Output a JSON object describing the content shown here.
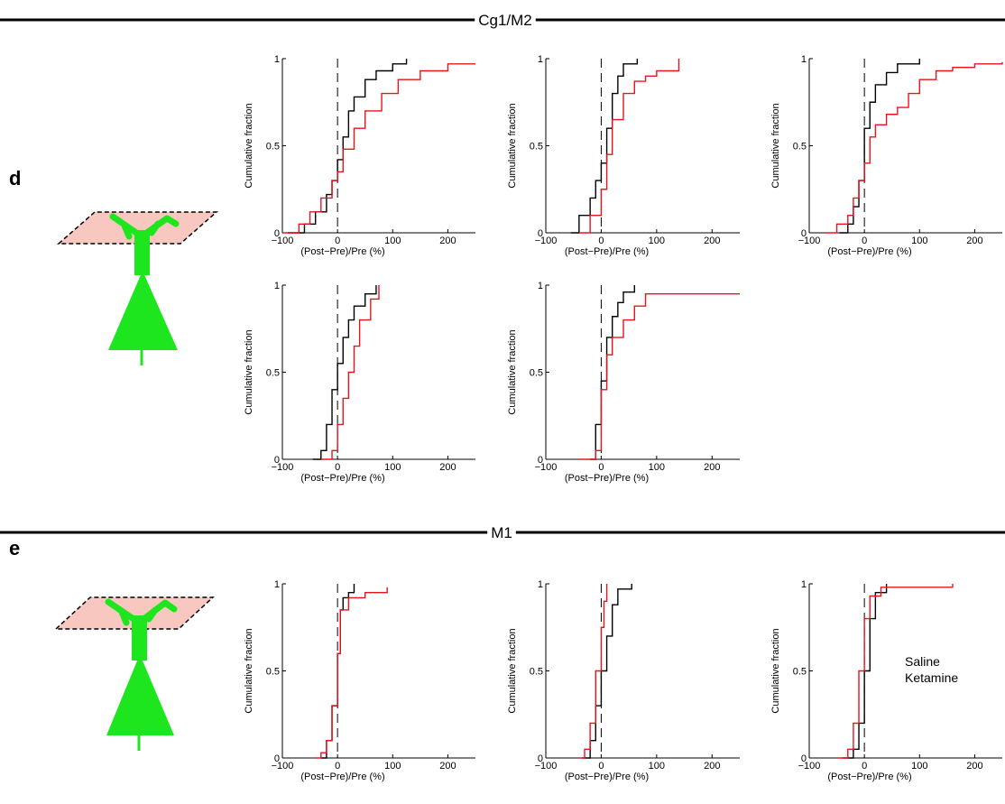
{
  "sections": [
    {
      "title": "Cg1/M2",
      "letter": "d"
    },
    {
      "title": "M1",
      "letter": "e"
    }
  ],
  "legend": [
    {
      "name": "Saline",
      "color": "#000000"
    },
    {
      "name": "Ketamine",
      "color": "#e8141b"
    }
  ],
  "chart_data": [
    {
      "type": "line",
      "step": true,
      "xlabel": "(Post−Pre)/Pre (%)",
      "ylabel": "Cumulative fraction",
      "xlim": [
        -100,
        250
      ],
      "ylim": [
        0,
        1
      ],
      "xticks": [
        {
          "value": -100,
          "label": "−100"
        },
        0,
        100,
        200
      ],
      "yticks": [
        0,
        0.5,
        1
      ],
      "vline": 0,
      "series": [
        {
          "color": "#000000",
          "x": [
            -90,
            -60,
            -40,
            -20,
            -10,
            0,
            10,
            20,
            30,
            50,
            70,
            100,
            125
          ],
          "values": [
            0,
            0.05,
            0.12,
            0.22,
            0.3,
            0.42,
            0.55,
            0.7,
            0.78,
            0.88,
            0.93,
            0.97,
            1
          ]
        },
        {
          "color": "#e8141b",
          "x": [
            -100,
            -70,
            -50,
            -30,
            -10,
            0,
            10,
            30,
            50,
            80,
            110,
            150,
            200,
            250
          ],
          "values": [
            0,
            0.05,
            0.12,
            0.2,
            0.3,
            0.35,
            0.48,
            0.6,
            0.7,
            0.8,
            0.88,
            0.93,
            0.97,
            0.97
          ]
        }
      ]
    },
    {
      "type": "line",
      "step": true,
      "xlabel": "(Post−Pre)/Pre (%)",
      "ylabel": "Cumulative fraction",
      "xlim": [
        -100,
        250
      ],
      "ylim": [
        0,
        1
      ],
      "xticks": [
        {
          "value": -100,
          "label": "−100"
        },
        0,
        100,
        200
      ],
      "yticks": [
        0,
        0.5,
        1
      ],
      "vline": 0,
      "series": [
        {
          "color": "#000000",
          "x": [
            -55,
            -40,
            -20,
            -10,
            0,
            10,
            20,
            30,
            40,
            65
          ],
          "values": [
            0,
            0.1,
            0.2,
            0.3,
            0.4,
            0.6,
            0.8,
            0.9,
            0.97,
            1
          ]
        },
        {
          "color": "#e8141b",
          "x": [
            -40,
            -20,
            0,
            10,
            20,
            40,
            60,
            80,
            100,
            140
          ],
          "values": [
            0,
            0.1,
            0.25,
            0.45,
            0.65,
            0.8,
            0.87,
            0.9,
            0.93,
            1
          ]
        }
      ]
    },
    {
      "type": "line",
      "step": true,
      "xlabel": "(Post−Pre)/Pre (%)",
      "ylabel": "Cumulative fraction",
      "xlim": [
        -100,
        250
      ],
      "ylim": [
        0,
        1
      ],
      "xticks": [
        {
          "value": -100,
          "label": "−100"
        },
        0,
        100,
        200
      ],
      "yticks": [
        0,
        0.5,
        1
      ],
      "vline": 0,
      "series": [
        {
          "color": "#000000",
          "x": [
            -45,
            -30,
            -20,
            -10,
            0,
            10,
            20,
            40,
            60,
            100
          ],
          "values": [
            0,
            0.05,
            0.15,
            0.3,
            0.6,
            0.75,
            0.85,
            0.92,
            0.97,
            1
          ]
        },
        {
          "color": "#e8141b",
          "x": [
            -70,
            -50,
            -30,
            -20,
            -10,
            0,
            10,
            20,
            40,
            60,
            80,
            100,
            130,
            160,
            200,
            250
          ],
          "values": [
            0,
            0.05,
            0.1,
            0.2,
            0.3,
            0.4,
            0.55,
            0.62,
            0.68,
            0.72,
            0.8,
            0.88,
            0.93,
            0.95,
            0.97,
            0.98
          ]
        }
      ]
    },
    {
      "type": "line",
      "step": true,
      "xlabel": "(Post−Pre)/Pre (%)",
      "ylabel": "Cumulative fraction",
      "xlim": [
        -100,
        250
      ],
      "ylim": [
        0,
        1
      ],
      "xticks": [
        {
          "value": -100,
          "label": "−100"
        },
        0,
        100,
        200
      ],
      "yticks": [
        0,
        0.5,
        1
      ],
      "vline": 0,
      "series": [
        {
          "color": "#000000",
          "x": [
            -45,
            -30,
            -20,
            -10,
            0,
            10,
            20,
            30,
            50,
            70
          ],
          "values": [
            0,
            0.05,
            0.2,
            0.4,
            0.55,
            0.7,
            0.8,
            0.88,
            0.95,
            1
          ]
        },
        {
          "color": "#e8141b",
          "x": [
            -30,
            -10,
            0,
            10,
            20,
            30,
            40,
            60,
            75
          ],
          "values": [
            0,
            0.05,
            0.2,
            0.35,
            0.5,
            0.65,
            0.8,
            0.92,
            1
          ]
        }
      ]
    },
    {
      "type": "line",
      "step": true,
      "xlabel": "(Post−Pre)/Pre (%)",
      "ylabel": "Cumulative fraction",
      "xlim": [
        -100,
        250
      ],
      "ylim": [
        0,
        1
      ],
      "xticks": [
        {
          "value": -100,
          "label": "−100"
        },
        0,
        100,
        200
      ],
      "yticks": [
        0,
        0.5,
        1
      ],
      "vline": 0,
      "series": [
        {
          "color": "#000000",
          "x": [
            -20,
            -10,
            0,
            10,
            20,
            30,
            40,
            60
          ],
          "values": [
            0,
            0.2,
            0.45,
            0.7,
            0.82,
            0.9,
            0.96,
            1
          ]
        },
        {
          "color": "#e8141b",
          "x": [
            -40,
            -10,
            0,
            10,
            20,
            40,
            60,
            80,
            250
          ],
          "values": [
            0,
            0.05,
            0.4,
            0.6,
            0.7,
            0.8,
            0.88,
            0.95,
            0.95
          ]
        }
      ]
    },
    {
      "type": "line",
      "step": true,
      "xlabel": "(Post−Pre)/Pre (%)",
      "ylabel": "Cumulative fraction",
      "xlim": [
        -100,
        250
      ],
      "ylim": [
        0,
        1
      ],
      "xticks": [
        {
          "value": -100,
          "label": "−100"
        },
        0,
        100,
        200
      ],
      "yticks": [
        0,
        0.5,
        1
      ],
      "vline": 0,
      "series": [
        {
          "color": "#000000",
          "x": [
            -30,
            -20,
            -10,
            0,
            5,
            10,
            20,
            30
          ],
          "values": [
            0,
            0.1,
            0.3,
            0.6,
            0.85,
            0.92,
            0.95,
            1
          ]
        },
        {
          "color": "#e8141b",
          "x": [
            -40,
            -30,
            -20,
            -10,
            0,
            5,
            20,
            50,
            90
          ],
          "values": [
            0,
            0.03,
            0.1,
            0.3,
            0.6,
            0.85,
            0.92,
            0.95,
            0.98
          ]
        }
      ]
    },
    {
      "type": "line",
      "step": true,
      "xlabel": "(Post−Pre)/Pre (%)",
      "ylabel": "Cumulative fraction",
      "xlim": [
        -100,
        250
      ],
      "ylim": [
        0,
        1
      ],
      "xticks": [
        {
          "value": -100,
          "label": "−100"
        },
        0,
        100,
        200
      ],
      "yticks": [
        0,
        0.5,
        1
      ],
      "vline": 0,
      "series": [
        {
          "color": "#000000",
          "x": [
            -35,
            -20,
            -10,
            0,
            10,
            20,
            30,
            55
          ],
          "values": [
            0,
            0.1,
            0.3,
            0.5,
            0.7,
            0.88,
            0.97,
            1
          ]
        },
        {
          "color": "#e8141b",
          "x": [
            -40,
            -30,
            -20,
            -10,
            0,
            5,
            10
          ],
          "values": [
            0,
            0.05,
            0.2,
            0.5,
            0.75,
            0.9,
            1
          ]
        }
      ]
    },
    {
      "type": "line",
      "step": true,
      "xlabel": "(Post−Pre)/Pre (%)",
      "ylabel": "Cumulative fraction",
      "xlim": [
        -100,
        250
      ],
      "ylim": [
        0,
        1
      ],
      "xticks": [
        {
          "value": -100,
          "label": "−100"
        },
        0,
        100,
        200
      ],
      "yticks": [
        0,
        0.5,
        1
      ],
      "vline": 0,
      "series": [
        {
          "color": "#000000",
          "x": [
            -40,
            -20,
            -10,
            0,
            10,
            20,
            40
          ],
          "values": [
            0,
            0.05,
            0.2,
            0.5,
            0.8,
            0.95,
            1
          ]
        },
        {
          "color": "#e8141b",
          "x": [
            -50,
            -30,
            -20,
            -10,
            0,
            10,
            30,
            160
          ],
          "values": [
            0,
            0.05,
            0.2,
            0.5,
            0.8,
            0.93,
            0.98,
            1
          ]
        }
      ]
    }
  ]
}
